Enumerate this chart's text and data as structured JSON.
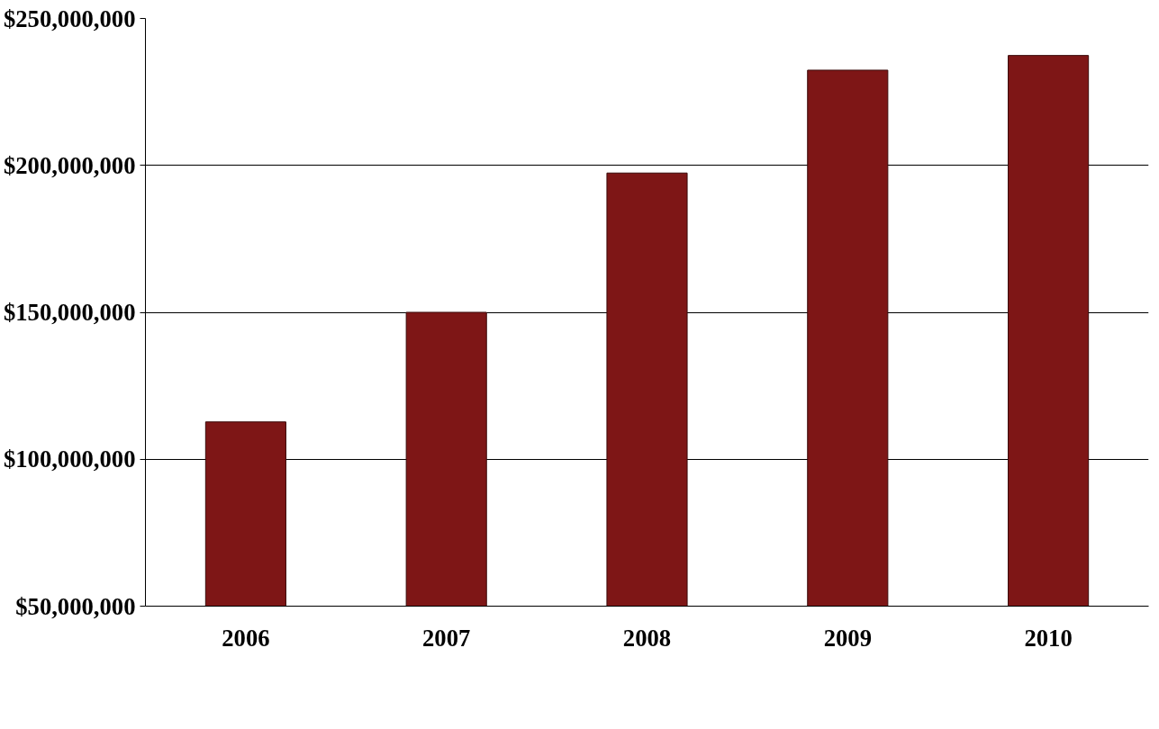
{
  "chart_data": {
    "type": "bar",
    "categories": [
      "2006",
      "2007",
      "2008",
      "2009",
      "2010"
    ],
    "series": [
      {
        "color": "#7e1616",
        "values": [
          112700000,
          150000000,
          197400000,
          232400000,
          237400000
        ]
      }
    ],
    "ylim": [
      50000000,
      250000000
    ],
    "yticks": [
      {
        "value": 50000000,
        "label": "$50,000,000"
      },
      {
        "value": 100000000,
        "label": "$100,000,000"
      },
      {
        "value": 150000000,
        "label": "$150,000,000"
      },
      {
        "value": 200000000,
        "label": "$200,000,000"
      },
      {
        "value": 250000000,
        "label": "$250,000,000"
      }
    ],
    "grid": "y"
  }
}
